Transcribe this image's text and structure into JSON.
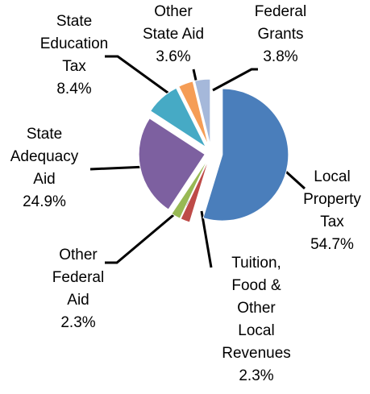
{
  "chart_data": {
    "type": "pie",
    "categories": [
      "Local Property Tax",
      "Tuition, Food & Other Local Revenues",
      "Other Federal Aid",
      "State Adequacy Aid",
      "State Education Tax",
      "Other State Aid",
      "Federal Grants"
    ],
    "values": [
      54.7,
      2.3,
      2.3,
      24.9,
      8.4,
      3.6,
      3.8
    ],
    "value_labels": [
      "54.7%",
      "2.3%",
      "2.3%",
      "24.9%",
      "8.4%",
      "3.6%",
      "3.8%"
    ],
    "colors": [
      "#4a7ebb",
      "#be4b48",
      "#98b954",
      "#7d60a0",
      "#46aac5",
      "#f59d56",
      "#a5b8da"
    ]
  }
}
